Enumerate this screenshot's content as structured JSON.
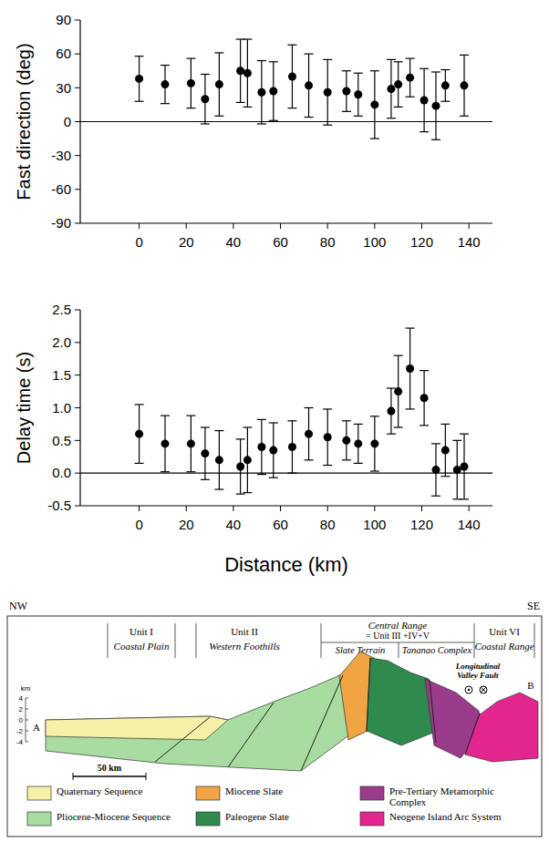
{
  "chart_data": [
    {
      "type": "scatter",
      "y_label": "Fast direction (deg)",
      "color": "#000000",
      "marker": "circle",
      "x": [
        0,
        11,
        22,
        28,
        34,
        43,
        46,
        52,
        57,
        65,
        72,
        80,
        88,
        93,
        100,
        107,
        110,
        115,
        121,
        126,
        130,
        138
      ],
      "values": [
        38,
        33,
        34,
        20,
        33,
        45,
        43,
        26,
        27,
        40,
        32,
        26,
        27,
        24,
        15,
        29,
        33,
        39,
        19,
        14,
        32,
        32
      ],
      "errors": [
        20,
        17,
        22,
        22,
        28,
        28,
        30,
        28,
        26,
        28,
        28,
        29,
        18,
        19,
        30,
        26,
        20,
        17,
        28,
        30,
        14,
        27
      ],
      "xlim": [
        -25,
        150
      ],
      "xticks": [
        0,
        20,
        40,
        60,
        80,
        100,
        120,
        140
      ],
      "ylim": [
        -90,
        90
      ],
      "yticks": [
        -90,
        -60,
        -30,
        0,
        30,
        60,
        90
      ],
      "reference_line": 0
    },
    {
      "type": "scatter",
      "y_label": "Delay time (s)",
      "x_label": "Distance (km)",
      "color": "#000000",
      "marker": "circle",
      "x": [
        0,
        11,
        22,
        28,
        34,
        43,
        46,
        52,
        57,
        65,
        72,
        80,
        88,
        93,
        100,
        107,
        110,
        115,
        121,
        126,
        130,
        135,
        138
      ],
      "values": [
        0.6,
        0.45,
        0.45,
        0.3,
        0.2,
        0.1,
        0.2,
        0.4,
        0.35,
        0.4,
        0.6,
        0.55,
        0.5,
        0.45,
        0.45,
        0.95,
        1.25,
        1.6,
        1.15,
        0.05,
        0.35,
        0.05,
        0.1
      ],
      "errors": [
        0.45,
        0.43,
        0.43,
        0.4,
        0.45,
        0.42,
        0.5,
        0.42,
        0.42,
        0.4,
        0.4,
        0.43,
        0.3,
        0.3,
        0.42,
        0.35,
        0.55,
        0.62,
        0.42,
        0.4,
        0.4,
        0.45,
        0.5
      ],
      "xlim": [
        -25,
        150
      ],
      "xticks": [
        0,
        20,
        40,
        60,
        80,
        100,
        120,
        140
      ],
      "ylim": [
        -0.5,
        2.5
      ],
      "yticks": [
        -0.5,
        {
          "value": 0,
          "label": "0.0"
        },
        0.5,
        {
          "value": 1,
          "label": "1.0"
        },
        1.5,
        {
          "value": 2,
          "label": "2.0"
        },
        2.5
      ],
      "reference_line": 0
    }
  ],
  "cross_section": {
    "ends": [
      "NW",
      "SE"
    ],
    "points": [
      "A",
      "B"
    ],
    "columns": [
      {
        "unit": "Unit I",
        "name": "Coastal Plain"
      },
      {
        "unit": "Unit II",
        "name": "Western Foothills"
      },
      {
        "unit": "Central Range",
        "name": "= Unit III +IV+V",
        "sub": [
          "Slate Terrain",
          "Tananao Complex"
        ]
      },
      {
        "unit": "Unit VI",
        "name": "Coastal Range"
      }
    ],
    "depth_axis": {
      "label": "km",
      "ticks": [
        4,
        2,
        0,
        -2,
        -4
      ]
    },
    "scale_bar": "50 km",
    "fault": "Longitudinal Valley Fault",
    "legend": [
      {
        "label": "Quaternary Sequence",
        "color": "#f6efa6"
      },
      {
        "label": "Pliocene-Miocene Sequence",
        "color": "#a9dca0"
      },
      {
        "label": "Miocene Slate",
        "color": "#f0a542"
      },
      {
        "label": "Paleogene Slate",
        "color": "#2f8a4e"
      },
      {
        "label": "Pre-Tertiary Metamorphic Complex",
        "color": "#9b3b8c"
      },
      {
        "label": "Neogene Island Arc System",
        "color": "#e3268f"
      }
    ]
  }
}
